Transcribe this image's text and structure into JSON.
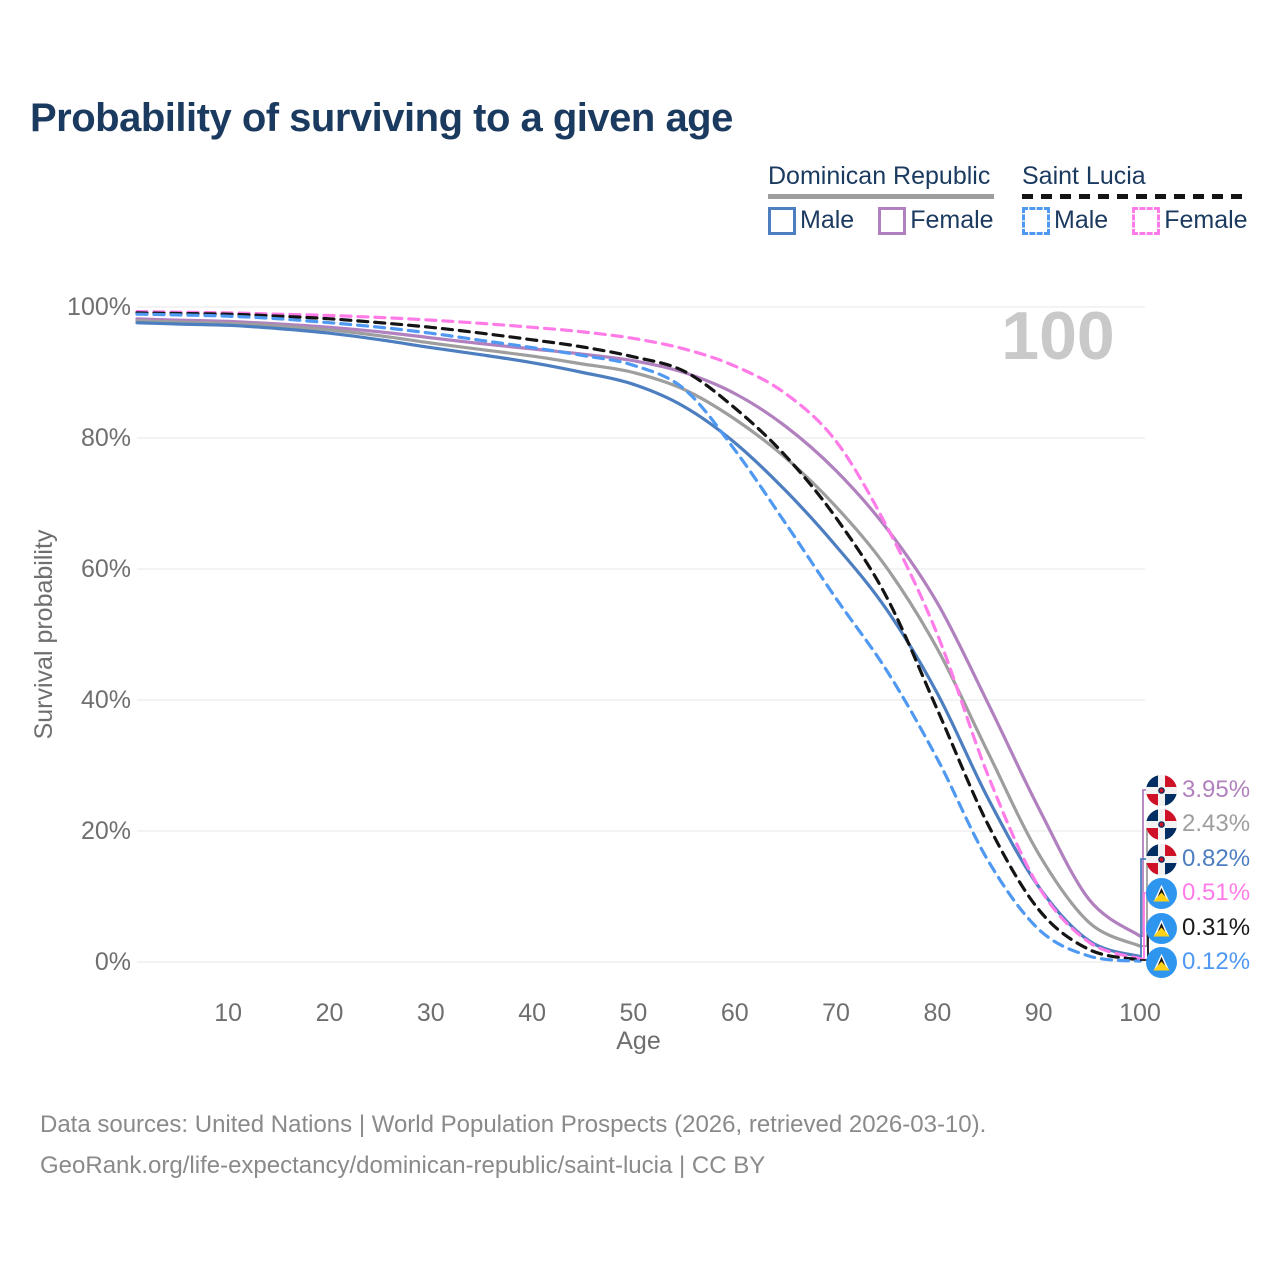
{
  "title": "Probability of surviving to a given age",
  "watermark": "100",
  "legend": {
    "groups": [
      {
        "label": "Dominican Republic",
        "line_style": "solid",
        "items": [
          {
            "label": "Male",
            "color": "#4d7ec0"
          },
          {
            "label": "Female",
            "color": "#b180be"
          }
        ]
      },
      {
        "label": "Saint Lucia",
        "line_style": "dashed",
        "items": [
          {
            "label": "Male",
            "color": "#4f99f2"
          },
          {
            "label": "Female",
            "color": "#ff7ce8"
          }
        ]
      }
    ]
  },
  "axes": {
    "x_label": "Age",
    "y_label": "Survival probability",
    "x_ticks": [
      10,
      20,
      30,
      40,
      50,
      60,
      70,
      80,
      90,
      100
    ],
    "y_ticks": [
      "0%",
      "20%",
      "40%",
      "60%",
      "80%",
      "100%"
    ]
  },
  "chart_data": {
    "type": "line",
    "title": "Probability of surviving to a given age",
    "xlabel": "Age",
    "ylabel": "Survival probability",
    "xlim": [
      1,
      100
    ],
    "ylim": [
      0,
      100
    ],
    "grid": "horizontal",
    "legend_position": "top-right",
    "x": [
      1,
      5,
      10,
      15,
      20,
      25,
      30,
      35,
      40,
      45,
      50,
      55,
      60,
      65,
      70,
      75,
      80,
      85,
      90,
      95,
      100
    ],
    "series": [
      {
        "name": "Dominican Republic Female",
        "country": "Dominican Republic",
        "sex": "Female",
        "color": "#b180be",
        "dash": false,
        "end_label": "3.95%",
        "values": [
          98.2,
          98.0,
          97.8,
          97.4,
          96.9,
          96.2,
          95.3,
          94.4,
          93.6,
          92.8,
          91.8,
          90.0,
          86.8,
          81.8,
          75.0,
          66.2,
          54.8,
          39.5,
          23.5,
          9.5,
          3.95
        ]
      },
      {
        "name": "Dominican Republic Both sexes",
        "country": "Dominican Republic",
        "sex": "Both",
        "color": "#9e9e9e",
        "dash": false,
        "end_label": "2.43%",
        "values": [
          97.9,
          97.7,
          97.5,
          97.1,
          96.5,
          95.6,
          94.5,
          93.5,
          92.5,
          91.3,
          90.0,
          87.4,
          82.9,
          77.0,
          69.5,
          60.2,
          47.8,
          32.0,
          16.5,
          6.0,
          2.43
        ]
      },
      {
        "name": "Dominican Republic Male",
        "country": "Dominican Republic",
        "sex": "Male",
        "color": "#4d7ec0",
        "dash": false,
        "end_label": "0.82%",
        "values": [
          97.6,
          97.4,
          97.2,
          96.7,
          96.0,
          95.0,
          93.8,
          92.7,
          91.5,
          90.0,
          88.2,
          84.8,
          79.3,
          72.0,
          63.5,
          53.8,
          41.0,
          25.0,
          11.5,
          3.2,
          0.82
        ]
      },
      {
        "name": "Saint Lucia Female",
        "country": "Saint Lucia",
        "sex": "Female",
        "color": "#ff7ce8",
        "dash": true,
        "end_label": "0.51%",
        "values": [
          99.3,
          99.2,
          99.1,
          98.9,
          98.7,
          98.4,
          98.0,
          97.5,
          96.9,
          96.2,
          95.2,
          93.6,
          91.0,
          86.8,
          79.5,
          66.5,
          50.0,
          28.5,
          11.5,
          3.0,
          0.51
        ]
      },
      {
        "name": "Saint Lucia Both sexes",
        "country": "Saint Lucia",
        "sex": "Both",
        "color": "#141414",
        "dash": true,
        "end_label": "0.31%",
        "values": [
          99.1,
          99.0,
          98.9,
          98.6,
          98.2,
          97.6,
          96.9,
          96.0,
          95.0,
          93.9,
          92.4,
          90.2,
          84.6,
          77.3,
          67.8,
          55.7,
          38.5,
          21.0,
          8.0,
          1.9,
          0.31
        ]
      },
      {
        "name": "Saint Lucia Male",
        "country": "Saint Lucia",
        "sex": "Male",
        "color": "#4f99f2",
        "dash": true,
        "end_label": "0.12%",
        "values": [
          98.9,
          98.8,
          98.6,
          98.2,
          97.6,
          96.9,
          96.0,
          94.9,
          93.8,
          92.6,
          91.1,
          87.5,
          78.2,
          67.0,
          55.5,
          44.5,
          31.0,
          15.5,
          5.0,
          0.9,
          0.12
        ]
      }
    ]
  },
  "source": {
    "line1": "Data sources: United Nations | World Population Prospects (2026, retrieved 2026-03-10).",
    "line2": "GeoRank.org/life-expectancy/dominican-republic/saint-lucia | CC BY"
  }
}
